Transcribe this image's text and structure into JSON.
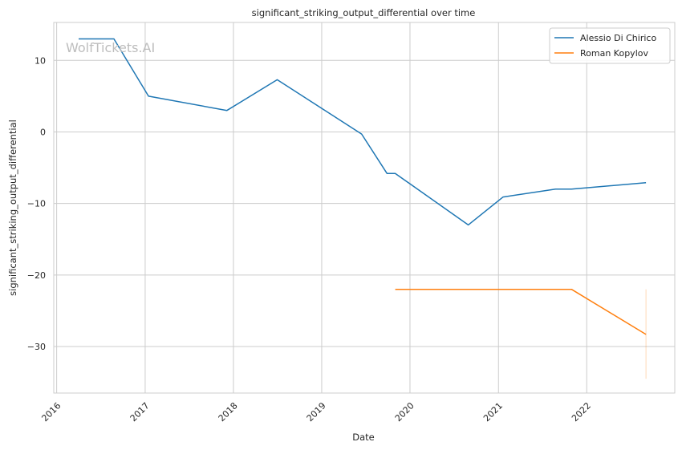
{
  "watermark": "WolfTickets.AI",
  "chart_data": {
    "type": "line",
    "title": "significant_striking_output_differential over time",
    "xlabel": "Date",
    "ylabel": "significant_striking_output_differential",
    "x_ticks": [
      "2016",
      "2017",
      "2018",
      "2019",
      "2020",
      "2021",
      "2022"
    ],
    "y_ticks": [
      10,
      0,
      -10,
      -20,
      -30
    ],
    "xlim": [
      "2015-12-20",
      "2022-12-31"
    ],
    "ylim": [
      -36.5,
      15.3
    ],
    "grid": true,
    "legend_position": "top-right",
    "series": [
      {
        "name": "Alessio Di Chirico",
        "color": "#1f77b4",
        "points": [
          {
            "x": "2016-04-01",
            "y": 13.0
          },
          {
            "x": "2016-08-25",
            "y": 13.0
          },
          {
            "x": "2017-01-15",
            "y": 5.0
          },
          {
            "x": "2017-12-05",
            "y": 3.0
          },
          {
            "x": "2018-07-01",
            "y": 7.3
          },
          {
            "x": "2019-06-15",
            "y": -0.3
          },
          {
            "x": "2019-09-28",
            "y": -5.8
          },
          {
            "x": "2019-11-01",
            "y": -5.8
          },
          {
            "x": "2020-08-29",
            "y": -13.0
          },
          {
            "x": "2021-01-20",
            "y": -9.1
          },
          {
            "x": "2021-08-25",
            "y": -8.0
          },
          {
            "x": "2021-10-30",
            "y": -8.0
          },
          {
            "x": "2022-09-03",
            "y": -7.1
          }
        ]
      },
      {
        "name": "Roman Kopylov",
        "color": "#ff7f0e",
        "points": [
          {
            "x": "2019-11-01",
            "y": -22.0
          },
          {
            "x": "2021-10-30",
            "y": -22.0
          },
          {
            "x": "2022-09-03",
            "y": -28.3
          }
        ],
        "error_band": {
          "x": "2022-09-03",
          "low": -34.5,
          "high": -22.0
        }
      }
    ]
  }
}
